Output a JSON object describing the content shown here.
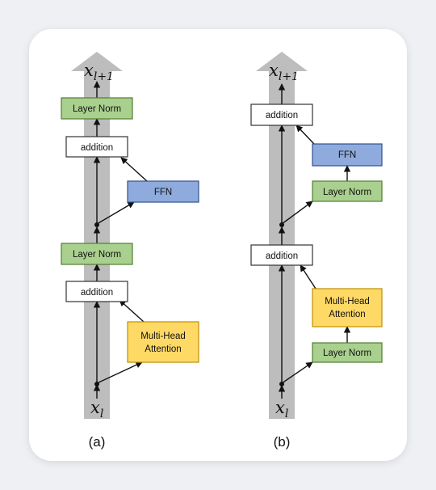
{
  "colors": {
    "trunk": "#bdbdbd",
    "layer_norm_fill": "#a9d08e",
    "layer_norm_stroke": "#507e32",
    "ffn_fill": "#8faadc",
    "ffn_stroke": "#2f528f",
    "attention_fill": "#ffd966",
    "attention_stroke": "#bf9000",
    "addition_fill": "#ffffff",
    "addition_stroke": "#333333",
    "arrow": "#111111"
  },
  "diagram_a": {
    "caption": "(a)",
    "output_label": "x",
    "output_subscript": "l+1",
    "input_label": "x",
    "input_subscript": "l",
    "layer_norm_top": "Layer Norm",
    "addition_top": "addition",
    "ffn": "FFN",
    "layer_norm_mid": "Layer Norm",
    "addition_bottom": "addition",
    "attention_line1": "Multi-Head",
    "attention_line2": "Attention"
  },
  "diagram_b": {
    "caption": "(b)",
    "output_label": "x",
    "output_subscript": "l+1",
    "input_label": "x",
    "input_subscript": "l",
    "addition_top": "addition",
    "ffn": "FFN",
    "layer_norm_ffn": "Layer Norm",
    "addition_bottom": "addition",
    "attention_line1": "Multi-Head",
    "attention_line2": "Attention",
    "layer_norm_attention": "Layer Norm"
  }
}
